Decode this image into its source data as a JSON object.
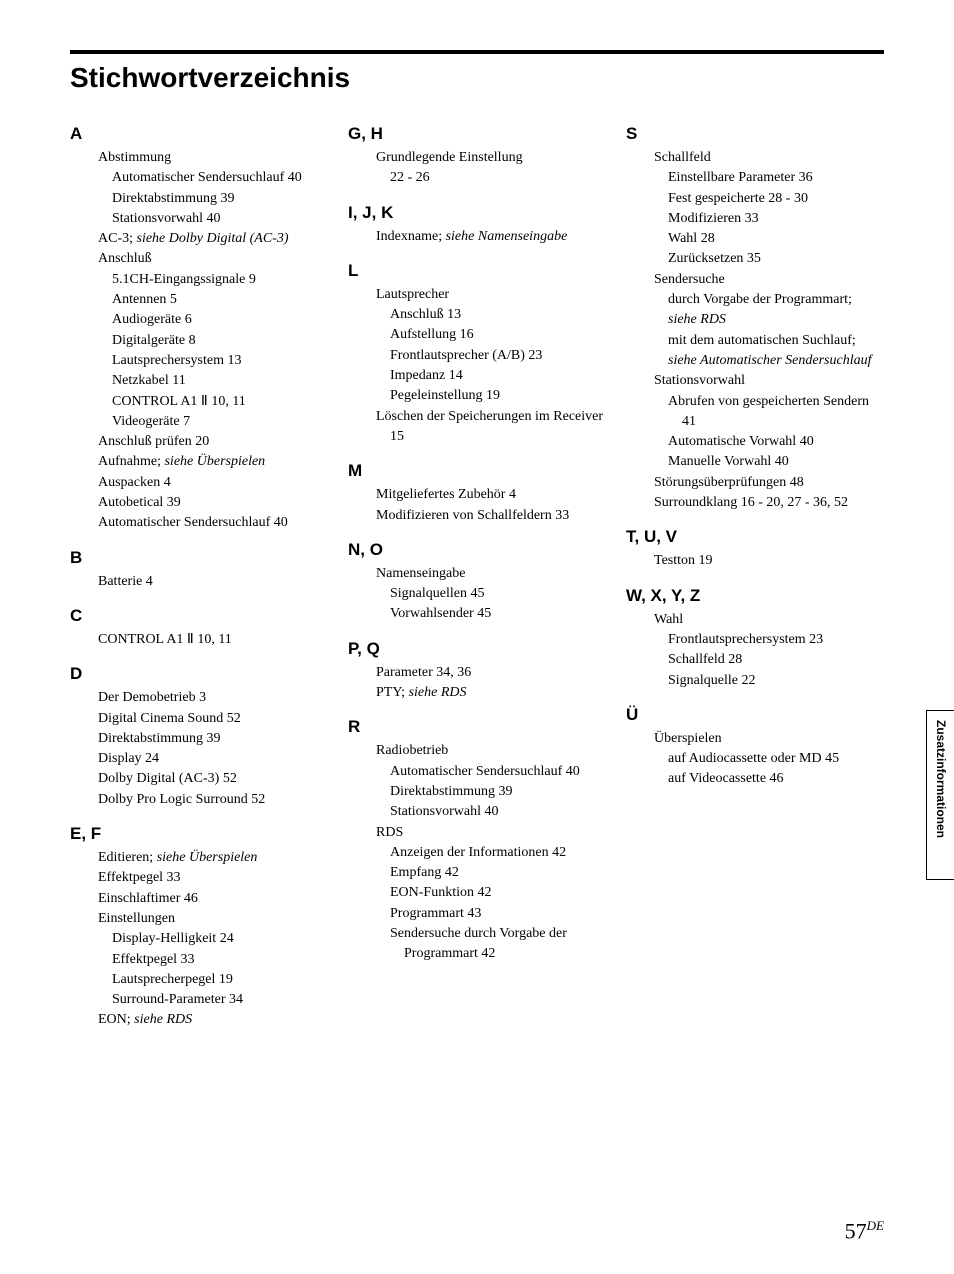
{
  "title": "Stichwortverzeichnis",
  "side_label": "Zusatzinformationen",
  "page_number": "57",
  "page_suffix": "DE",
  "colors": {
    "text": "#000000",
    "background": "#ffffff",
    "rule": "#000000"
  },
  "typography": {
    "body_family": "Georgia",
    "heading_family": "Arial",
    "body_size_pt": 14,
    "letter_size_pt": 17,
    "title_size_pt": 28
  },
  "cols": [
    [
      {
        "letter": "A",
        "entries": [
          {
            "t": "Abstimmung"
          },
          {
            "t": "Automatischer Sendersuchlauf 40",
            "sub": 1
          },
          {
            "t": "Direktabstimmung   39",
            "sub": 1
          },
          {
            "t": "Stationsvorwahl   40",
            "sub": 1
          },
          {
            "t": "AC-3; ",
            "tail_italic": "siehe Dolby Digital (AC-3)"
          },
          {
            "t": "Anschluß"
          },
          {
            "t": "5.1CH-Eingangssignale   9",
            "sub": 1
          },
          {
            "t": "Antennen   5",
            "sub": 1
          },
          {
            "t": "Audiogeräte   6",
            "sub": 1
          },
          {
            "t": "Digitalgeräte   8",
            "sub": 1
          },
          {
            "t": "Lautsprechersystem   13",
            "sub": 1
          },
          {
            "t": "Netzkabel   11",
            "sub": 1
          },
          {
            "t": "CONTROL A1 Ⅱ   10, 11",
            "sub": 1
          },
          {
            "t": "Videogeräte   7",
            "sub": 1
          },
          {
            "t": "Anschluß prüfen   20"
          },
          {
            "t": "Aufnahme; ",
            "tail_italic": "siehe Überspielen"
          },
          {
            "t": "Auspacken   4"
          },
          {
            "t": "Autobetical   39"
          },
          {
            "t": "Automatischer Sendersuchlauf 40",
            "hang": 1
          }
        ]
      },
      {
        "letter": "B",
        "entries": [
          {
            "t": "Batterie   4"
          }
        ]
      },
      {
        "letter": "C",
        "entries": [
          {
            "t": "CONTROL A1 Ⅱ   10, 11"
          }
        ]
      },
      {
        "letter": "D",
        "entries": [
          {
            "t": "Der Demobetrieb   3"
          },
          {
            "t": "Digital Cinema Sound   52"
          },
          {
            "t": "Direktabstimmung   39"
          },
          {
            "t": "Display   24"
          },
          {
            "t": "Dolby Digital (AC-3)   52"
          },
          {
            "t": "Dolby Pro Logic Surround   52"
          }
        ]
      },
      {
        "letter": "E, F",
        "entries": [
          {
            "t": "Editieren; ",
            "tail_italic": "siehe Überspielen"
          },
          {
            "t": "Effektpegel   33"
          },
          {
            "t": "Einschlaftimer   46"
          },
          {
            "t": "Einstellungen"
          },
          {
            "t": "Display-Helligkeit   24",
            "sub": 1
          },
          {
            "t": "Effektpegel   33",
            "sub": 1
          },
          {
            "t": "Lautsprecherpegel   19",
            "sub": 1
          },
          {
            "t": "Surround-Parameter   34",
            "sub": 1
          },
          {
            "t": "EON; ",
            "tail_italic": "siehe RDS"
          }
        ]
      }
    ],
    [
      {
        "letter": "G, H",
        "entries": [
          {
            "t": "Grundlegende Einstellung"
          },
          {
            "t": "22 - 26",
            "sub": 1
          }
        ]
      },
      {
        "letter": "I, J, K",
        "entries": [
          {
            "t": "Indexname; ",
            "tail_italic": "siehe Namenseingabe"
          }
        ]
      },
      {
        "letter": "L",
        "entries": [
          {
            "t": "Lautsprecher"
          },
          {
            "t": "Anschluß   13",
            "sub": 1
          },
          {
            "t": "Aufstellung   16",
            "sub": 1
          },
          {
            "t": "Frontlautsprecher (A/B)   23",
            "sub": 1
          },
          {
            "t": "Impedanz   14",
            "sub": 1
          },
          {
            "t": "Pegeleinstellung   19",
            "sub": 1
          },
          {
            "t": "Löschen der Speicherungen im Receiver   15",
            "hang": 1
          }
        ]
      },
      {
        "letter": "M",
        "entries": [
          {
            "t": "Mitgeliefertes Zubehör   4"
          },
          {
            "t": "Modifizieren von Schallfeldern 33",
            "hang": 1
          }
        ]
      },
      {
        "letter": "N, O",
        "entries": [
          {
            "t": "Namenseingabe"
          },
          {
            "t": "Signalquellen   45",
            "sub": 1
          },
          {
            "t": "Vorwahlsender   45",
            "sub": 1
          }
        ]
      },
      {
        "letter": "P, Q",
        "entries": [
          {
            "t": "Parameter   34, 36"
          },
          {
            "t": "PTY; ",
            "tail_italic": "siehe RDS"
          }
        ]
      },
      {
        "letter": "R",
        "entries": [
          {
            "t": "Radiobetrieb"
          },
          {
            "t": "Automatischer Sendersuchlauf 40",
            "sub": 1,
            "hang": 1
          },
          {
            "t": "Direktabstimmung   39",
            "sub": 1
          },
          {
            "t": "Stationsvorwahl   40",
            "sub": 1
          },
          {
            "t": "RDS"
          },
          {
            "t": "Anzeigen der Informationen 42",
            "sub": 1,
            "hang": 1
          },
          {
            "t": "Empfang   42",
            "sub": 1
          },
          {
            "t": "EON-Funktion   42",
            "sub": 1
          },
          {
            "t": "Programmart   43",
            "sub": 1
          },
          {
            "t": "Sendersuche durch Vorgabe der Programmart   42",
            "sub": 1,
            "hang": 1
          }
        ]
      }
    ],
    [
      {
        "letter": "S",
        "entries": [
          {
            "t": "Schallfeld"
          },
          {
            "t": "Einstellbare Parameter   36",
            "sub": 1
          },
          {
            "t": "Fest gespeicherte   28 - 30",
            "sub": 1
          },
          {
            "t": "Modifizieren   33",
            "sub": 1
          },
          {
            "t": "Wahl   28",
            "sub": 1
          },
          {
            "t": "Zurücksetzen   35",
            "sub": 1
          },
          {
            "t": "Sendersuche"
          },
          {
            "t": "durch Vorgabe der Programmart; ",
            "sub": 1,
            "tail_italic": "siehe RDS"
          },
          {
            "t": "mit dem automatischen Suchlauf; ",
            "sub": 1,
            "tail_italic": "siehe Automatischer Sendersuchlauf"
          },
          {
            "t": "Stationsvorwahl"
          },
          {
            "t": "Abrufen von gespeicherten Sendern   41",
            "sub": 1,
            "hang": 1
          },
          {
            "t": "Automatische Vorwahl   40",
            "sub": 1
          },
          {
            "t": "Manuelle Vorwahl   40",
            "sub": 1
          },
          {
            "t": "Störungsüberprüfungen   48"
          },
          {
            "t": "Surroundklang   16 - 20, 27 - 36, 52",
            "hang": 1
          }
        ]
      },
      {
        "letter": "T, U, V",
        "entries": [
          {
            "t": "Testton   19"
          }
        ]
      },
      {
        "letter": "W, X, Y, Z",
        "entries": [
          {
            "t": "Wahl"
          },
          {
            "t": "Frontlautsprechersystem   23",
            "sub": 1
          },
          {
            "t": "Schallfeld   28",
            "sub": 1
          },
          {
            "t": "Signalquelle   22",
            "sub": 1
          }
        ]
      },
      {
        "letter": "Ü",
        "entries": [
          {
            "t": "Überspielen"
          },
          {
            "t": "auf Audiocassette oder MD 45",
            "sub": 1,
            "hang": 1
          },
          {
            "t": "auf Videocassette   46",
            "sub": 1
          }
        ]
      }
    ]
  ]
}
